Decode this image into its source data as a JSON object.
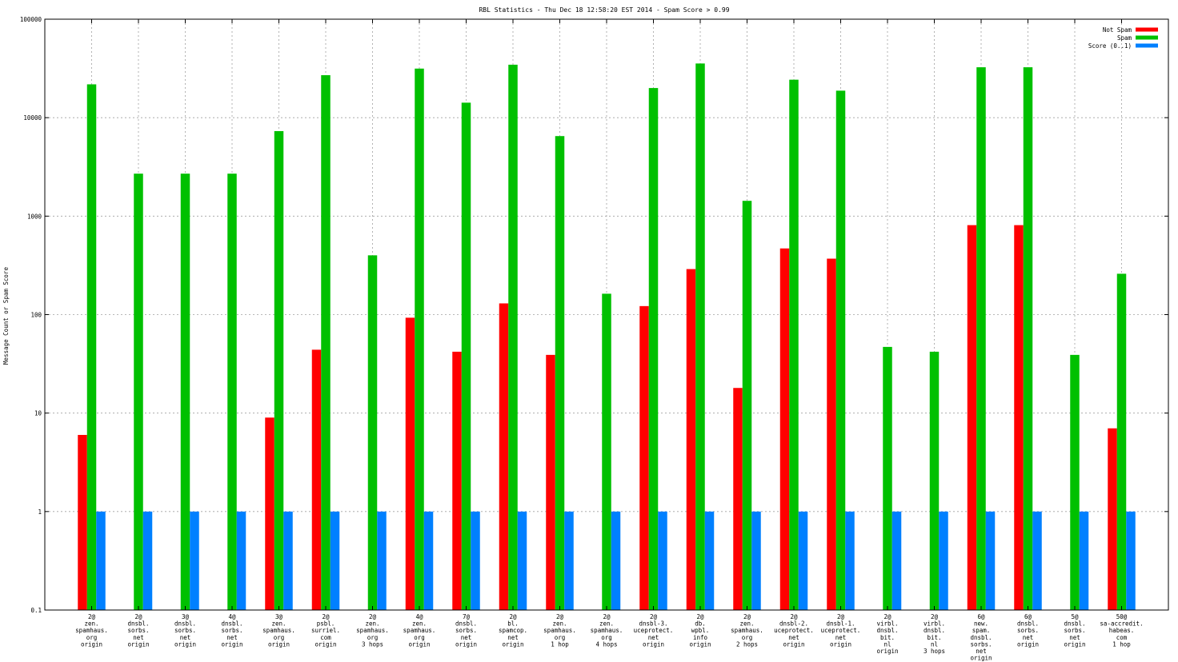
{
  "chart_data": {
    "type": "bar",
    "title": "RBL Statistics - Thu Dec 18 12:58:20 EST 2014 - Spam Score > 0.99",
    "ylabel": "Message Count or Spam Score",
    "xlabel": "",
    "yscale": "log",
    "ylim": [
      0.1,
      100000
    ],
    "yticks": [
      "0.1",
      "1",
      "10",
      "100",
      "1000",
      "10000",
      "100000"
    ],
    "grid": true,
    "legend_position": "top-right",
    "colors": {
      "Not Spam": "#ff0000",
      "Spam": "#00c000",
      "Score (0..1)": "#0080ff"
    },
    "categories": [
      [
        "2@",
        "zen.",
        "spamhaus.",
        "org",
        "origin"
      ],
      [
        "2@",
        "dnsbl.",
        "sorbs.",
        "net",
        "origin"
      ],
      [
        "3@",
        "dnsbl.",
        "sorbs.",
        "net",
        "origin"
      ],
      [
        "4@",
        "dnsbl.",
        "sorbs.",
        "net",
        "origin"
      ],
      [
        "3@",
        "zen.",
        "spamhaus.",
        "org",
        "origin"
      ],
      [
        "2@",
        "psbl.",
        "surriel.",
        "com",
        "origin"
      ],
      [
        "2@",
        "zen.",
        "spamhaus.",
        "org",
        "3 hops"
      ],
      [
        "4@",
        "zen.",
        "spamhaus.",
        "org",
        "origin"
      ],
      [
        "7@",
        "dnsbl.",
        "sorbs.",
        "net",
        "origin"
      ],
      [
        "2@",
        "bl.",
        "spamcop.",
        "net",
        "origin"
      ],
      [
        "2@",
        "zen.",
        "spamhaus.",
        "org",
        "1 hop"
      ],
      [
        "2@",
        "zen.",
        "spamhaus.",
        "org",
        "4 hops"
      ],
      [
        "2@",
        "dnsbl-3.",
        "uceprotect.",
        "net",
        "origin"
      ],
      [
        "2@",
        "db.",
        "wpbl.",
        "info",
        "origin"
      ],
      [
        "2@",
        "zen.",
        "spamhaus.",
        "org",
        "2 hops"
      ],
      [
        "2@",
        "dnsbl-2.",
        "uceprotect.",
        "net",
        "origin"
      ],
      [
        "2@",
        "dnsbl-1.",
        "uceprotect.",
        "net",
        "origin"
      ],
      [
        "2@",
        "virbl.",
        "dnsbl.",
        "bit.",
        "nl",
        "origin"
      ],
      [
        "2@",
        "virbl.",
        "dnsbl.",
        "bit.",
        "nl",
        "3 hops"
      ],
      [
        "6@",
        "new.",
        "spam.",
        "dnsbl.",
        "sorbs.",
        "net",
        "origin"
      ],
      [
        "6@",
        "dnsbl.",
        "sorbs.",
        "net",
        "origin"
      ],
      [
        "5@",
        "dnsbl.",
        "sorbs.",
        "net",
        "origin"
      ],
      [
        "50@",
        "sa-accredit.",
        "habeas.",
        "com",
        "1 hop"
      ]
    ],
    "series": [
      {
        "name": "Not Spam",
        "values": [
          6,
          0,
          0,
          0,
          9,
          44,
          0,
          93,
          42,
          130,
          39,
          0,
          122,
          290,
          18,
          470,
          370,
          0,
          0,
          810,
          810,
          0,
          7
        ]
      },
      {
        "name": "Spam",
        "values": [
          21800,
          2700,
          2700,
          2700,
          7300,
          27000,
          400,
          31500,
          14200,
          34500,
          6500,
          163,
          20000,
          35500,
          1430,
          24300,
          18800,
          47,
          42,
          32500,
          32500,
          39,
          260
        ]
      },
      {
        "name": "Score (0..1)",
        "values": [
          1,
          1,
          1,
          1,
          1,
          1,
          1,
          1,
          1,
          1,
          1,
          1,
          1,
          1,
          1,
          1,
          1,
          1,
          1,
          1,
          1,
          1,
          1
        ]
      }
    ]
  }
}
